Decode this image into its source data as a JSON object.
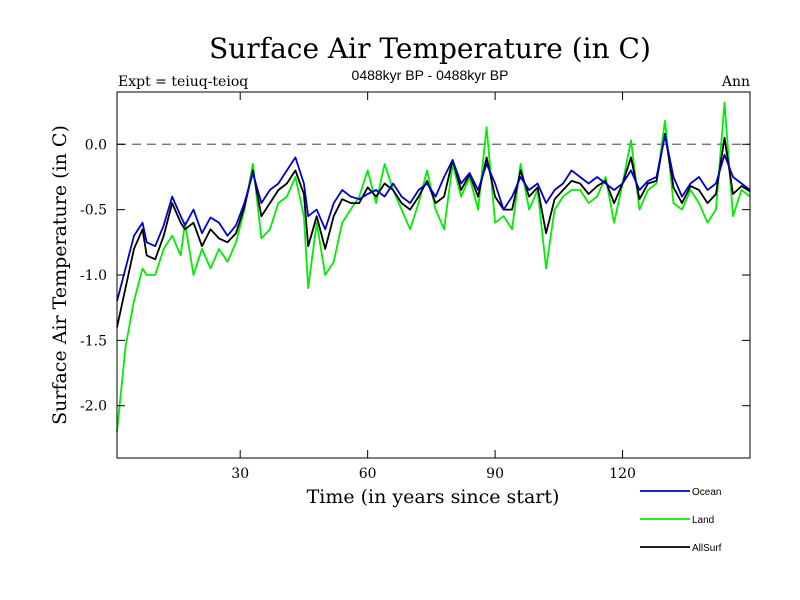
{
  "chart_data": {
    "type": "line",
    "title": "Surface Air Temperature (in C)",
    "subtitle": "0488kyr BP - 0488kyr BP",
    "left_label": "Expt = teiuq-teioq",
    "right_label": "Ann",
    "xlabel": "Time (in years since start)",
    "ylabel": "Surface Air Temperature (in C)",
    "xlim": [
      1,
      150
    ],
    "ylim": [
      -2.4,
      0.4
    ],
    "xticks": [
      30,
      60,
      90,
      120
    ],
    "yticks": [
      -2.0,
      -1.5,
      -1.0,
      -0.5,
      0.0
    ],
    "ytick_labels": [
      "-2.0",
      "-1.5",
      "-1.0",
      "-0.5",
      "0.0"
    ],
    "reference_line": 0.0,
    "series": [
      {
        "name": "Ocean",
        "color": "#0000cc",
        "x": [
          1,
          3,
          5,
          7,
          8,
          10,
          12,
          14,
          16,
          17,
          19,
          21,
          23,
          25,
          27,
          29,
          31,
          33,
          35,
          37,
          39,
          41,
          43,
          45,
          46,
          48,
          50,
          52,
          54,
          56,
          58,
          60,
          62,
          64,
          66,
          68,
          70,
          72,
          74,
          76,
          78,
          80,
          82,
          84,
          86,
          88,
          90,
          92,
          94,
          96,
          98,
          100,
          102,
          104,
          106,
          108,
          110,
          112,
          114,
          116,
          118,
          120,
          122,
          124,
          126,
          128,
          130,
          132,
          134,
          136,
          138,
          140,
          142,
          144,
          146,
          148,
          150
        ],
        "values": [
          -1.2,
          -0.95,
          -0.7,
          -0.6,
          -0.75,
          -0.78,
          -0.62,
          -0.4,
          -0.55,
          -0.62,
          -0.5,
          -0.68,
          -0.56,
          -0.6,
          -0.7,
          -0.62,
          -0.45,
          -0.22,
          -0.45,
          -0.35,
          -0.3,
          -0.2,
          -0.1,
          -0.3,
          -0.55,
          -0.5,
          -0.65,
          -0.45,
          -0.35,
          -0.4,
          -0.42,
          -0.38,
          -0.35,
          -0.4,
          -0.3,
          -0.4,
          -0.45,
          -0.35,
          -0.3,
          -0.4,
          -0.25,
          -0.12,
          -0.3,
          -0.22,
          -0.35,
          -0.15,
          -0.3,
          -0.5,
          -0.4,
          -0.25,
          -0.35,
          -0.3,
          -0.45,
          -0.35,
          -0.3,
          -0.2,
          -0.25,
          -0.3,
          -0.25,
          -0.3,
          -0.35,
          -0.3,
          -0.2,
          -0.35,
          -0.28,
          -0.25,
          0.07,
          -0.25,
          -0.4,
          -0.3,
          -0.25,
          -0.35,
          -0.3,
          -0.08,
          -0.25,
          -0.3,
          -0.35
        ]
      },
      {
        "name": "Land",
        "color": "#00ee00",
        "x": [
          1,
          3,
          5,
          7,
          8,
          10,
          12,
          14,
          16,
          17,
          19,
          21,
          23,
          25,
          27,
          29,
          31,
          33,
          35,
          37,
          39,
          41,
          43,
          45,
          46,
          48,
          50,
          52,
          54,
          56,
          58,
          60,
          62,
          64,
          66,
          68,
          70,
          72,
          74,
          76,
          78,
          80,
          82,
          84,
          86,
          88,
          90,
          92,
          94,
          96,
          98,
          100,
          102,
          104,
          106,
          108,
          110,
          112,
          114,
          116,
          118,
          120,
          122,
          124,
          126,
          128,
          130,
          132,
          134,
          136,
          138,
          140,
          142,
          144,
          146,
          148,
          150
        ],
        "values": [
          -2.2,
          -1.55,
          -1.2,
          -0.95,
          -1.0,
          -1.0,
          -0.8,
          -0.7,
          -0.85,
          -0.6,
          -1.0,
          -0.8,
          -0.95,
          -0.8,
          -0.9,
          -0.75,
          -0.5,
          -0.15,
          -0.72,
          -0.65,
          -0.45,
          -0.4,
          -0.25,
          -0.55,
          -1.1,
          -0.6,
          -1.0,
          -0.9,
          -0.6,
          -0.5,
          -0.4,
          -0.2,
          -0.45,
          -0.15,
          -0.35,
          -0.5,
          -0.65,
          -0.45,
          -0.2,
          -0.5,
          -0.65,
          -0.15,
          -0.4,
          -0.25,
          -0.5,
          0.13,
          -0.6,
          -0.55,
          -0.65,
          -0.15,
          -0.5,
          -0.35,
          -0.95,
          -0.5,
          -0.4,
          -0.35,
          -0.35,
          -0.45,
          -0.4,
          -0.25,
          -0.6,
          -0.3,
          0.03,
          -0.5,
          -0.35,
          -0.3,
          0.18,
          -0.45,
          -0.5,
          -0.35,
          -0.45,
          -0.6,
          -0.5,
          0.32,
          -0.55,
          -0.35,
          -0.4
        ]
      },
      {
        "name": "AllSurf",
        "color": "#000000",
        "x": [
          1,
          3,
          5,
          7,
          8,
          10,
          12,
          14,
          16,
          17,
          19,
          21,
          23,
          25,
          27,
          29,
          31,
          33,
          35,
          37,
          39,
          41,
          43,
          45,
          46,
          48,
          50,
          52,
          54,
          56,
          58,
          60,
          62,
          64,
          66,
          68,
          70,
          72,
          74,
          76,
          78,
          80,
          82,
          84,
          86,
          88,
          90,
          92,
          94,
          96,
          98,
          100,
          102,
          104,
          106,
          108,
          110,
          112,
          114,
          116,
          118,
          120,
          122,
          124,
          126,
          128,
          130,
          132,
          134,
          136,
          138,
          140,
          142,
          144,
          146,
          148,
          150
        ],
        "values": [
          -1.4,
          -1.1,
          -0.8,
          -0.65,
          -0.85,
          -0.88,
          -0.7,
          -0.45,
          -0.6,
          -0.65,
          -0.6,
          -0.78,
          -0.65,
          -0.72,
          -0.75,
          -0.68,
          -0.48,
          -0.2,
          -0.55,
          -0.45,
          -0.35,
          -0.3,
          -0.2,
          -0.38,
          -0.78,
          -0.55,
          -0.8,
          -0.55,
          -0.42,
          -0.45,
          -0.45,
          -0.33,
          -0.4,
          -0.3,
          -0.35,
          -0.45,
          -0.5,
          -0.4,
          -0.28,
          -0.45,
          -0.4,
          -0.12,
          -0.35,
          -0.23,
          -0.4,
          -0.1,
          -0.4,
          -0.5,
          -0.5,
          -0.2,
          -0.4,
          -0.33,
          -0.68,
          -0.42,
          -0.35,
          -0.28,
          -0.3,
          -0.38,
          -0.32,
          -0.28,
          -0.45,
          -0.3,
          -0.1,
          -0.42,
          -0.3,
          -0.28,
          0.08,
          -0.33,
          -0.45,
          -0.32,
          -0.35,
          -0.45,
          -0.38,
          0.05,
          -0.38,
          -0.32,
          -0.36
        ]
      }
    ],
    "legend_position": "bottom-right"
  }
}
